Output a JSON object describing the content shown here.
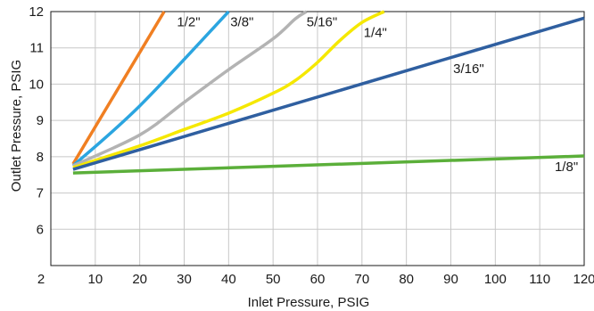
{
  "chart_data": {
    "type": "line",
    "xlabel": "Inlet Pressure, PSIG",
    "ylabel": "Outlet Pressure, PSIG",
    "xlim": [
      0,
      120
    ],
    "ylim": [
      5,
      12
    ],
    "x_ticks": [
      10,
      20,
      30,
      40,
      50,
      60,
      70,
      80,
      90,
      100,
      110,
      120
    ],
    "y_ticks": [
      6,
      7,
      8,
      9,
      10,
      11,
      12
    ],
    "x_tick_labels": [
      "10",
      "20",
      "30",
      "40",
      "50",
      "60",
      "70",
      "80",
      "90",
      "100",
      "110",
      "120"
    ],
    "y_tick_labels": [
      "6",
      "7",
      "8",
      "9",
      "10",
      "11",
      "12"
    ],
    "origin_label": "2",
    "grid": true,
    "series": [
      {
        "name": "1/2\"",
        "color": "#F07F22",
        "points": [
          [
            5,
            7.8
          ],
          [
            25.5,
            12.0
          ]
        ]
      },
      {
        "name": "3/8\"",
        "color": "#2BA5E0",
        "points": [
          [
            5,
            7.75
          ],
          [
            20,
            9.4
          ],
          [
            40,
            12.0
          ]
        ]
      },
      {
        "name": "5/16\"",
        "color": "#B3B3B3",
        "points": [
          [
            5,
            7.75
          ],
          [
            20,
            8.6
          ],
          [
            30,
            9.5
          ],
          [
            40,
            10.4
          ],
          [
            50,
            11.25
          ],
          [
            55,
            11.8
          ],
          [
            57.5,
            12.0
          ]
        ]
      },
      {
        "name": "1/4\"",
        "color": "#F5E800",
        "points": [
          [
            5,
            7.7
          ],
          [
            20,
            8.3
          ],
          [
            30,
            8.75
          ],
          [
            40,
            9.2
          ],
          [
            50,
            9.75
          ],
          [
            55,
            10.1
          ],
          [
            60,
            10.6
          ],
          [
            65,
            11.2
          ],
          [
            70,
            11.7
          ],
          [
            75,
            12.0
          ]
        ]
      },
      {
        "name": "3/16\"",
        "color": "#2F5FA0",
        "points": [
          [
            5,
            7.65
          ],
          [
            120,
            11.82
          ]
        ]
      },
      {
        "name": "1/8\"",
        "color": "#5BAF3A",
        "points": [
          [
            5,
            7.55
          ],
          [
            120,
            8.02
          ]
        ]
      }
    ],
    "labels": [
      {
        "series": 0,
        "text": "1/2\"",
        "x": 31,
        "y": 11.6
      },
      {
        "series": 1,
        "text": "3/8\"",
        "x": 43,
        "y": 11.6
      },
      {
        "series": 2,
        "text": "5/16\"",
        "x": 61,
        "y": 11.6
      },
      {
        "series": 3,
        "text": "1/4\"",
        "x": 73,
        "y": 11.3
      },
      {
        "series": 4,
        "text": "3/16\"",
        "x": 94,
        "y": 10.3
      },
      {
        "series": 5,
        "text": "1/8\"",
        "x": 116,
        "y": 7.6
      }
    ]
  }
}
